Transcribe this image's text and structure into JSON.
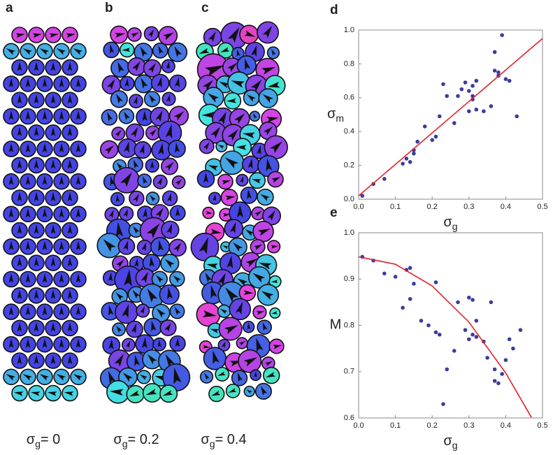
{
  "panels": [
    {
      "label": "a",
      "caption": {
        "symbol": "σ",
        "subscript": "g",
        "text": "= 0"
      }
    },
    {
      "label": "b",
      "caption": {
        "symbol": "σ",
        "subscript": "g",
        "text": "= 0.2"
      }
    },
    {
      "label": "c",
      "caption": {
        "symbol": "σ",
        "subscript": "g",
        "text": "= 0.4"
      }
    }
  ],
  "chart_data": [
    {
      "type": "scatter",
      "label": "d",
      "xlabel": {
        "symbol": "σ",
        "subscript": "g"
      },
      "ylabel": {
        "symbol": "σ",
        "subscript": "m"
      },
      "xlim": [
        0,
        0.5
      ],
      "ylim": [
        0,
        1
      ],
      "xticks": [
        {
          "value": 0,
          "label": "0.0"
        },
        0.1,
        0.2,
        0.3,
        0.4,
        0.5
      ],
      "yticks": [
        {
          "value": 0,
          "label": "0.0"
        },
        0.2,
        0.4,
        0.6,
        0.8,
        {
          "value": 1,
          "label": "1.0"
        }
      ],
      "series": [
        {
          "type": "scatter",
          "color": "#3b3b9e",
          "x": [
            0.01,
            0.04,
            0.07,
            0.12,
            0.13,
            0.14,
            0.15,
            0.15,
            0.16,
            0.18,
            0.2,
            0.21,
            0.22,
            0.23,
            0.24,
            0.26,
            0.27,
            0.28,
            0.29,
            0.3,
            0.3,
            0.31,
            0.31,
            0.31,
            0.32,
            0.32,
            0.34,
            0.36,
            0.37,
            0.37,
            0.38,
            0.38,
            0.39,
            0.4,
            0.41,
            0.43
          ],
          "values": [
            0.02,
            0.09,
            0.12,
            0.21,
            0.24,
            0.22,
            0.27,
            0.29,
            0.34,
            0.43,
            0.35,
            0.37,
            0.49,
            0.68,
            0.61,
            0.45,
            0.61,
            0.65,
            0.69,
            0.52,
            0.64,
            0.59,
            0.61,
            0.67,
            0.53,
            0.7,
            0.52,
            0.55,
            0.76,
            0.87,
            0.75,
            0.73,
            0.97,
            0.71,
            0.7,
            0.49
          ]
        },
        {
          "type": "line",
          "color": "#e8202a",
          "x": [
            0,
            0.5
          ],
          "values": [
            0.02,
            0.95
          ]
        }
      ]
    },
    {
      "type": "scatter",
      "label": "e",
      "xlabel": {
        "symbol": "σ",
        "subscript": "g"
      },
      "ylabel": {
        "symbol": "M"
      },
      "xlim": [
        0,
        0.5
      ],
      "ylim": [
        0.6,
        1
      ],
      "xticks": [
        {
          "value": 0,
          "label": "0.0"
        },
        0.1,
        0.2,
        0.3,
        0.4,
        0.5
      ],
      "yticks": [
        0.6,
        0.7,
        0.8,
        0.9,
        {
          "value": 1,
          "label": "1.0"
        }
      ],
      "series": [
        {
          "type": "scatter",
          "color": "#3b3b9e",
          "x": [
            0.01,
            0.04,
            0.07,
            0.1,
            0.12,
            0.13,
            0.14,
            0.14,
            0.15,
            0.17,
            0.19,
            0.21,
            0.21,
            0.22,
            0.23,
            0.24,
            0.26,
            0.27,
            0.29,
            0.3,
            0.3,
            0.31,
            0.31,
            0.32,
            0.32,
            0.34,
            0.35,
            0.36,
            0.37,
            0.37,
            0.38,
            0.39,
            0.4,
            0.41,
            0.42,
            0.44
          ],
          "values": [
            0.948,
            0.94,
            0.912,
            0.905,
            0.838,
            0.92,
            0.924,
            0.857,
            0.89,
            0.81,
            0.8,
            0.785,
            0.893,
            0.78,
            0.63,
            0.705,
            0.745,
            0.85,
            0.79,
            0.86,
            0.77,
            0.855,
            0.78,
            0.81,
            0.775,
            0.765,
            0.73,
            0.85,
            0.705,
            0.68,
            0.675,
            0.695,
            0.725,
            0.77,
            0.75,
            0.79
          ]
        },
        {
          "type": "line",
          "color": "#e8202a",
          "x": [
            0,
            0.1,
            0.2,
            0.3,
            0.4,
            0.47
          ],
          "values": [
            0.948,
            0.932,
            0.885,
            0.807,
            0.697,
            0.601
          ]
        }
      ]
    }
  ]
}
